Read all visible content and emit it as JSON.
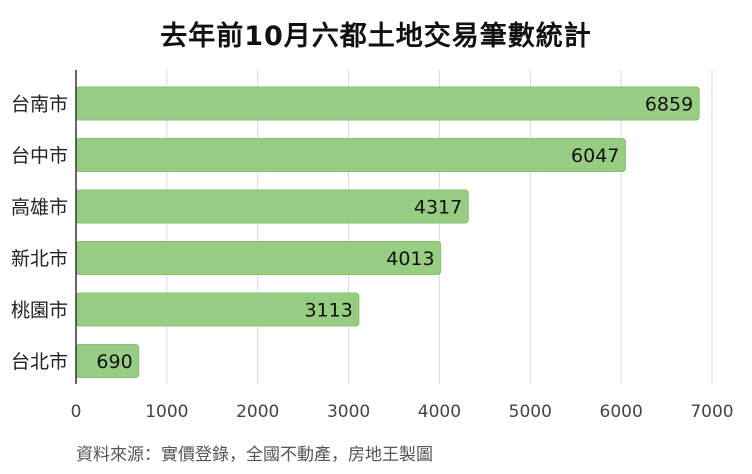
{
  "chart_data": {
    "type": "bar",
    "orientation": "horizontal",
    "title": "去年前10月六都土地交易筆數統計",
    "categories": [
      "台南市",
      "台中市",
      "高雄市",
      "新北市",
      "桃園市",
      "台北市"
    ],
    "values": [
      6859,
      6047,
      4317,
      4013,
      3113,
      690
    ],
    "xlim": [
      0,
      7000
    ],
    "xticks": [
      0,
      1000,
      2000,
      3000,
      4000,
      5000,
      6000,
      7000
    ],
    "grid": true,
    "data_labels": true,
    "bar_color": "#97cd83",
    "bar_stroke_color": "#86bf72",
    "grid_color": "#d9d9d9",
    "axis_color": "#333333",
    "source": "資料來源：實價登錄，全國不動產，房地王製圖"
  }
}
